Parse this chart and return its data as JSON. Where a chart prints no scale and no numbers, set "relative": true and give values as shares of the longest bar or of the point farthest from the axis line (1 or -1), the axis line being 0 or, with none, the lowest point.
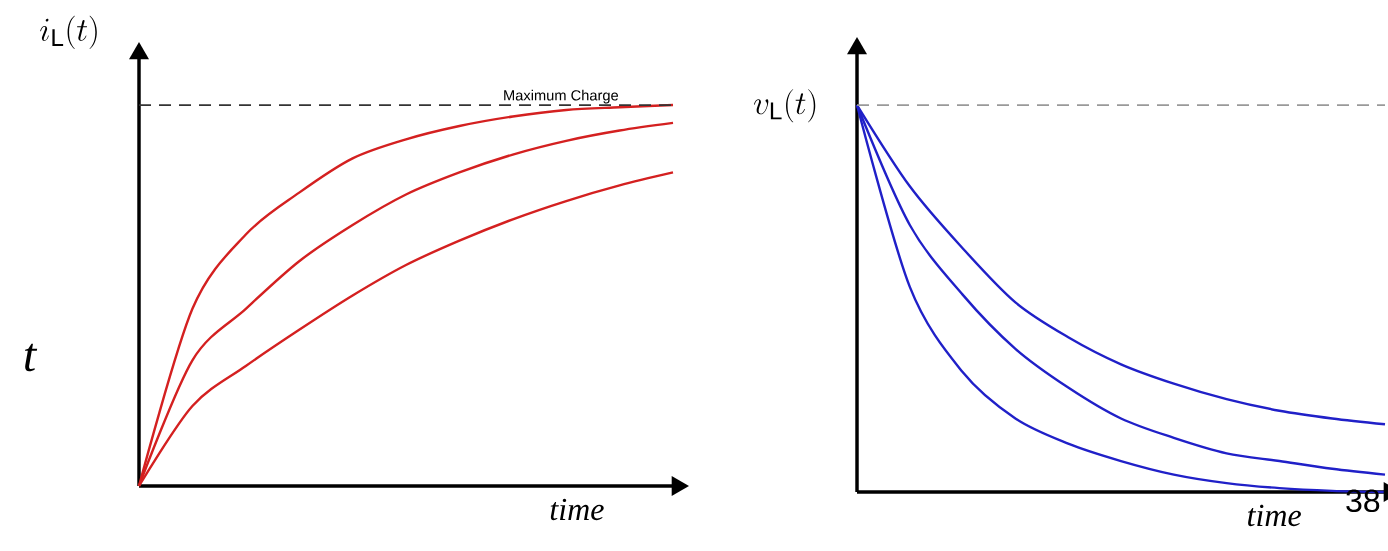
{
  "chart_data": [
    {
      "type": "line",
      "relative": true,
      "ylabel": "i_{\\mathrm{L}}(t)",
      "xlabel": "time",
      "categories": [
        null,
        null,
        null,
        null,
        null,
        null,
        null,
        null,
        null,
        null,
        null
      ],
      "series": [
        {
          "color": "#d42020",
          "values": [
            0,
            0.465,
            0.66,
            0.77,
            0.86,
            0.91,
            0.945,
            0.97,
            0.987,
            0.994,
            1
          ]
        },
        {
          "color": "#d42020",
          "values": [
            0,
            0.33,
            0.465,
            0.59,
            0.685,
            0.765,
            0.823,
            0.87,
            0.906,
            0.933,
            0.953
          ]
        },
        {
          "color": "#d42020",
          "values": [
            0,
            0.21,
            0.315,
            0.41,
            0.5,
            0.58,
            0.644,
            0.7,
            0.748,
            0.789,
            0.823
          ]
        }
      ],
      "ref_lines": [
        {
          "axis": "y",
          "value": 1,
          "label": "Maximum Charge",
          "color": "#333333",
          "line_style": "dashed"
        }
      ],
      "annotations": [
        "t"
      ]
    },
    {
      "type": "line",
      "relative": true,
      "ylabel": "v_{\\mathrm{L}}(t)",
      "xlabel": "time",
      "categories": [
        null,
        null,
        null,
        null,
        null,
        null,
        null,
        null,
        null,
        null,
        null
      ],
      "series": [
        {
          "color": "#2020c8",
          "values": [
            1,
            0.79,
            0.63,
            0.49,
            0.4,
            0.33,
            0.28,
            0.24,
            0.21,
            0.19,
            0.175
          ]
        },
        {
          "color": "#2020c8",
          "values": [
            1,
            0.69,
            0.51,
            0.37,
            0.27,
            0.19,
            0.14,
            0.1,
            0.08,
            0.06,
            0.045
          ]
        },
        {
          "color": "#2020c8",
          "values": [
            1,
            0.53,
            0.31,
            0.19,
            0.125,
            0.08,
            0.045,
            0.023,
            0.01,
            0.003,
            0
          ]
        }
      ],
      "ref_lines": [
        {
          "axis": "y",
          "value": 1,
          "color": "#999999",
          "line_style": "dashed"
        }
      ],
      "annotations": [
        "38"
      ]
    }
  ]
}
